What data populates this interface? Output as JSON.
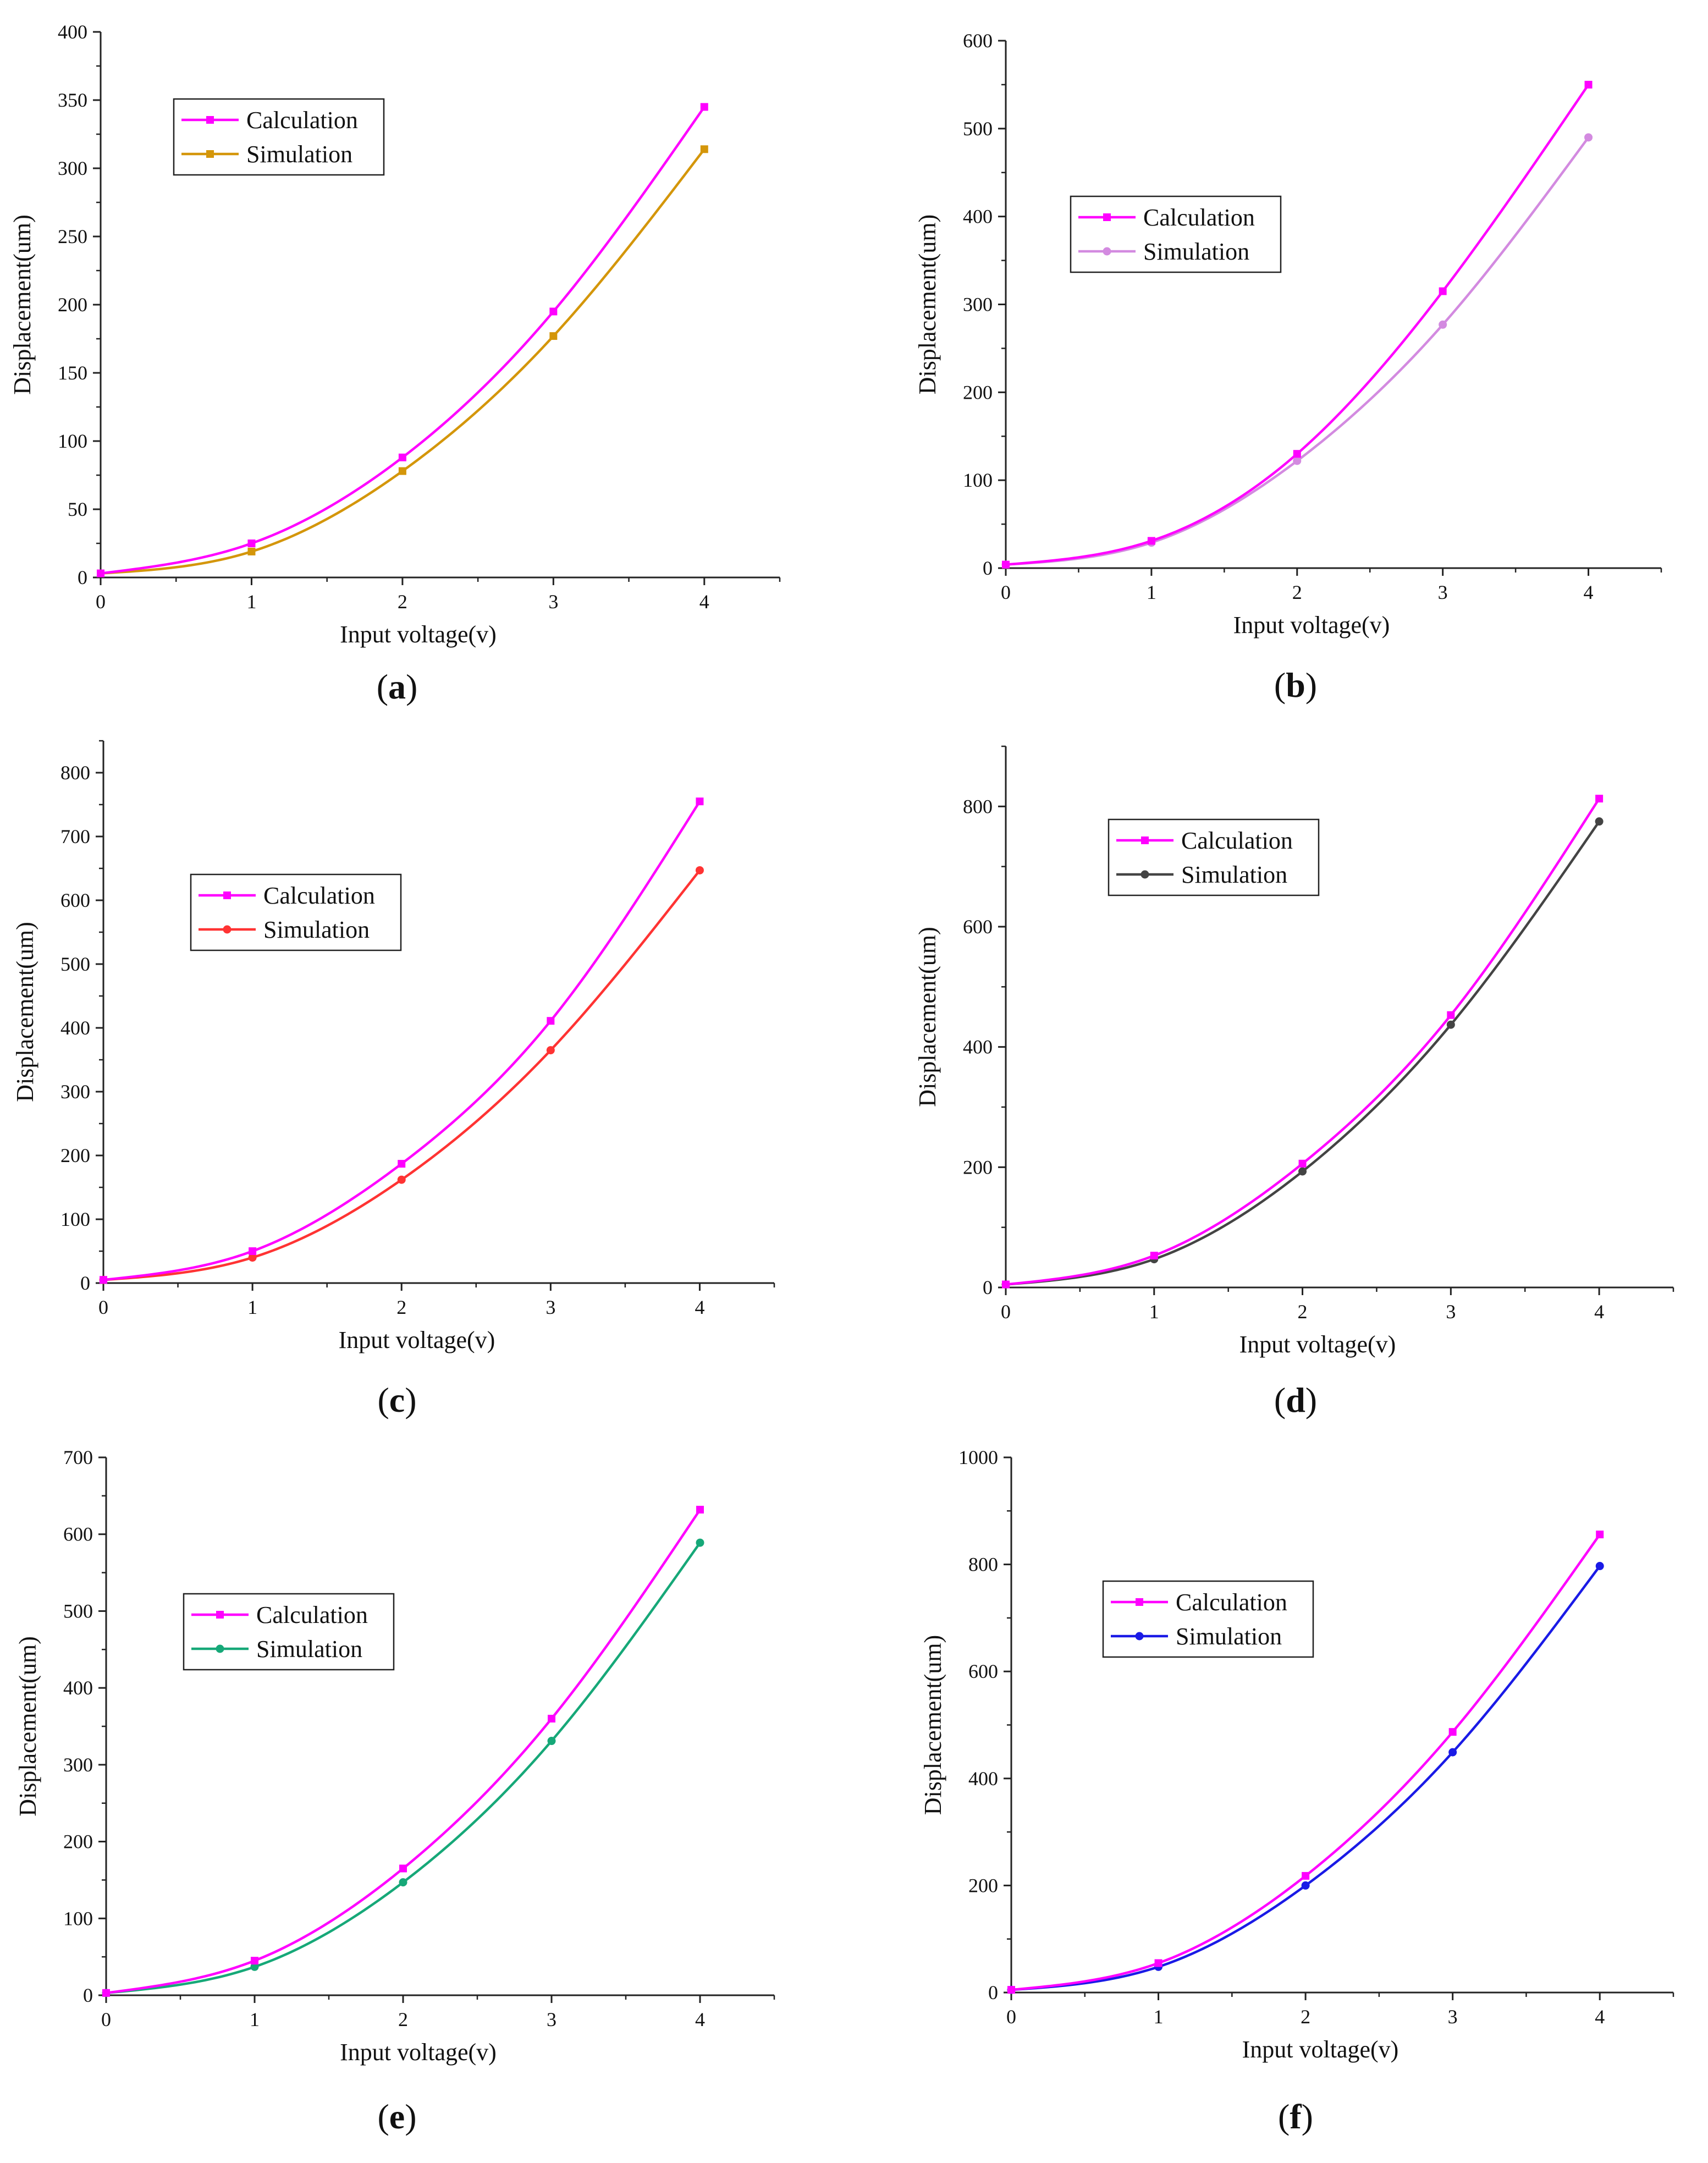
{
  "figure": {
    "captions": [
      "a",
      "b",
      "c",
      "d",
      "e",
      "f"
    ]
  },
  "chart_data": [
    {
      "panel": "a",
      "type": "line",
      "title": "",
      "xlabel": "Input voltage(v)",
      "ylabel": "Displacement(um)",
      "xlim": [
        0,
        4.5
      ],
      "ylim": [
        0,
        400
      ],
      "xticks": [
        0,
        1,
        2,
        3,
        4
      ],
      "yticks": [
        0,
        50,
        100,
        150,
        200,
        250,
        300,
        350,
        400
      ],
      "legend": "top-left",
      "x": [
        0,
        1,
        2,
        3,
        4
      ],
      "series": [
        {
          "name": "Calculation",
          "color": "#ff00ff",
          "marker": "square",
          "values": [
            3,
            25,
            88,
            195,
            345
          ]
        },
        {
          "name": "Simulation",
          "color": "#d4960a",
          "marker": "square",
          "values": [
            3,
            19,
            78,
            177,
            314
          ]
        }
      ]
    },
    {
      "panel": "b",
      "type": "line",
      "title": "",
      "xlabel": "Input voltage(v)",
      "ylabel": "Displacement(um)",
      "xlim": [
        0,
        4.5
      ],
      "ylim": [
        0,
        600
      ],
      "xticks": [
        0,
        1,
        2,
        3,
        4
      ],
      "yticks": [
        0,
        100,
        200,
        300,
        400,
        500,
        600
      ],
      "legend": "top-left",
      "x": [
        0,
        1,
        2,
        3,
        4
      ],
      "series": [
        {
          "name": "Calculation",
          "color": "#ff00ff",
          "marker": "square",
          "values": [
            4,
            31,
            130,
            315,
            550
          ]
        },
        {
          "name": "Simulation",
          "color": "#d38ae0",
          "marker": "circle",
          "values": [
            4,
            29,
            122,
            277,
            490
          ]
        }
      ]
    },
    {
      "panel": "c",
      "type": "line",
      "title": "",
      "xlabel": "Input voltage(v)",
      "ylabel": "Displacement(um)",
      "xlim": [
        0,
        4.5
      ],
      "ylim": [
        0,
        850
      ],
      "xticks": [
        0,
        1,
        2,
        3,
        4
      ],
      "yticks": [
        0,
        100,
        200,
        300,
        400,
        500,
        600,
        700,
        800
      ],
      "legend": "center-left",
      "x": [
        0,
        1,
        2,
        3,
        4
      ],
      "series": [
        {
          "name": "Calculation",
          "color": "#ff00ff",
          "marker": "square",
          "values": [
            5,
            50,
            187,
            411,
            755
          ]
        },
        {
          "name": "Simulation",
          "color": "#ff3333",
          "marker": "circle",
          "values": [
            5,
            40,
            162,
            365,
            647
          ]
        }
      ]
    },
    {
      "panel": "d",
      "type": "line",
      "title": "",
      "xlabel": "Input voltage(v)",
      "ylabel": "Displacement(um)",
      "xlim": [
        0,
        4.5
      ],
      "ylim": [
        0,
        900
      ],
      "xticks": [
        0,
        1,
        2,
        3,
        4
      ],
      "yticks": [
        0,
        200,
        400,
        600,
        800
      ],
      "legend": "top-left",
      "x": [
        0,
        1,
        2,
        3,
        4
      ],
      "series": [
        {
          "name": "Calculation",
          "color": "#ff00ff",
          "marker": "square",
          "values": [
            5,
            53,
            206,
            453,
            813
          ]
        },
        {
          "name": "Simulation",
          "color": "#444444",
          "marker": "circle",
          "values": [
            5,
            47,
            193,
            437,
            775
          ]
        }
      ]
    },
    {
      "panel": "e",
      "type": "line",
      "title": "",
      "xlabel": "Input voltage(v)",
      "ylabel": "Displacement(um)",
      "xlim": [
        0,
        4.5
      ],
      "ylim": [
        0,
        700
      ],
      "xticks": [
        0,
        1,
        2,
        3,
        4
      ],
      "yticks": [
        0,
        100,
        200,
        300,
        400,
        500,
        600,
        700
      ],
      "legend": "center-left",
      "x": [
        0,
        1,
        2,
        3,
        4
      ],
      "series": [
        {
          "name": "Calculation",
          "color": "#ff00ff",
          "marker": "square",
          "values": [
            3,
            45,
            165,
            360,
            632
          ]
        },
        {
          "name": "Simulation",
          "color": "#16a878",
          "marker": "circle",
          "values": [
            3,
            37,
            147,
            331,
            589
          ]
        }
      ]
    },
    {
      "panel": "f",
      "type": "line",
      "title": "",
      "xlabel": "Input voltage(v)",
      "ylabel": "Displacement(um)",
      "xlim": [
        0,
        4.5
      ],
      "ylim": [
        0,
        1000
      ],
      "xticks": [
        0,
        1,
        2,
        3,
        4
      ],
      "yticks": [
        0,
        200,
        400,
        600,
        800,
        1000
      ],
      "legend": "top-left",
      "x": [
        0,
        1,
        2,
        3,
        4
      ],
      "series": [
        {
          "name": "Calculation",
          "color": "#ff00ff",
          "marker": "square",
          "values": [
            5,
            55,
            218,
            487,
            856
          ]
        },
        {
          "name": "Simulation",
          "color": "#1a1ae6",
          "marker": "circle",
          "values": [
            5,
            48,
            200,
            449,
            797
          ]
        }
      ]
    }
  ]
}
